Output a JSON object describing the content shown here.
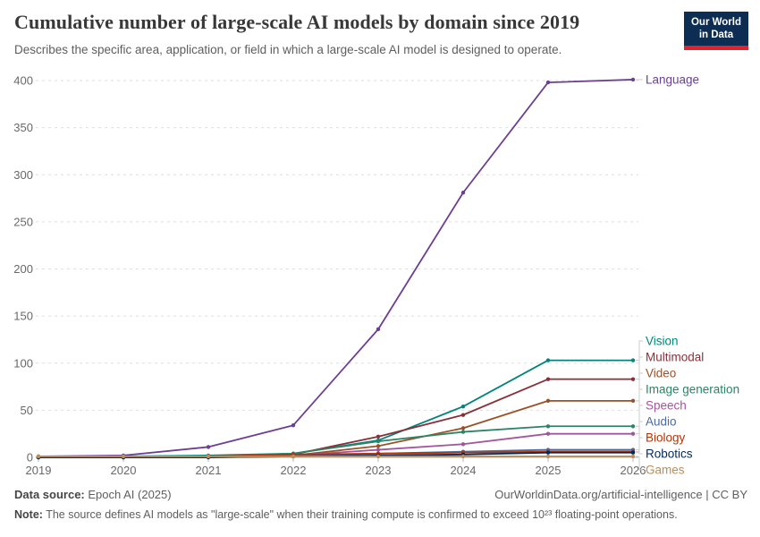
{
  "header": {
    "title": "Cumulative number of large-scale AI models by domain since 2019",
    "subtitle": "Describes the specific area, application, or field in which a large-scale AI model is designed to operate.",
    "logo": {
      "line1": "Our World",
      "line2": "in Data",
      "bg": "#0D2D52",
      "accent": "#E0232E"
    }
  },
  "chart_data": {
    "type": "line",
    "title": "Cumulative number of large-scale AI models by domain since 2019",
    "x": [
      2019,
      2020,
      2021,
      2022,
      2023,
      2024,
      2025,
      2026
    ],
    "xlabel": "",
    "ylabel": "",
    "ylim": [
      0,
      400
    ],
    "yticks": [
      0,
      50,
      100,
      150,
      200,
      250,
      300,
      350,
      400
    ],
    "grid": "horizontal-dashed",
    "legend_position": "right-end-labels",
    "series": [
      {
        "name": "Language",
        "color": "#6D3E91",
        "values": [
          1,
          2,
          11,
          34,
          136,
          281,
          398,
          401
        ]
      },
      {
        "name": "Vision",
        "color": "#00847E",
        "values": [
          1,
          1,
          2,
          4,
          18,
          54,
          103,
          103
        ]
      },
      {
        "name": "Multimodal",
        "color": "#883039",
        "values": [
          0,
          0,
          1,
          3,
          22,
          45,
          83,
          83
        ]
      },
      {
        "name": "Video",
        "color": "#9A5129",
        "values": [
          0,
          0,
          1,
          2,
          12,
          31,
          60,
          60
        ]
      },
      {
        "name": "Image generation",
        "color": "#2C8465",
        "values": [
          0,
          0,
          1,
          4,
          17,
          27,
          33,
          33
        ]
      },
      {
        "name": "Speech",
        "color": "#A2559C",
        "values": [
          0,
          0,
          1,
          2,
          8,
          14,
          25,
          25
        ]
      },
      {
        "name": "Audio",
        "color": "#4C6A9C",
        "values": [
          0,
          0,
          0,
          1,
          4,
          6,
          8,
          8
        ]
      },
      {
        "name": "Biology",
        "color": "#B13507",
        "values": [
          0,
          0,
          1,
          3,
          4,
          5,
          6,
          6
        ]
      },
      {
        "name": "Robotics",
        "color": "#00295B",
        "values": [
          0,
          0,
          0,
          1,
          2,
          3,
          5,
          5
        ]
      },
      {
        "name": "Games",
        "color": "#BC8E5A",
        "values": [
          1,
          1,
          1,
          1,
          1,
          1,
          1,
          1
        ]
      }
    ]
  },
  "footer": {
    "source_label": "Data source:",
    "source_value": " Epoch AI (2025)",
    "credit": "OurWorldinData.org/artificial-intelligence | CC BY",
    "note_label": "Note:",
    "note_value": " The source defines AI models as \"large-scale\" when their training compute is confirmed to exceed 10²³ floating-point operations."
  }
}
